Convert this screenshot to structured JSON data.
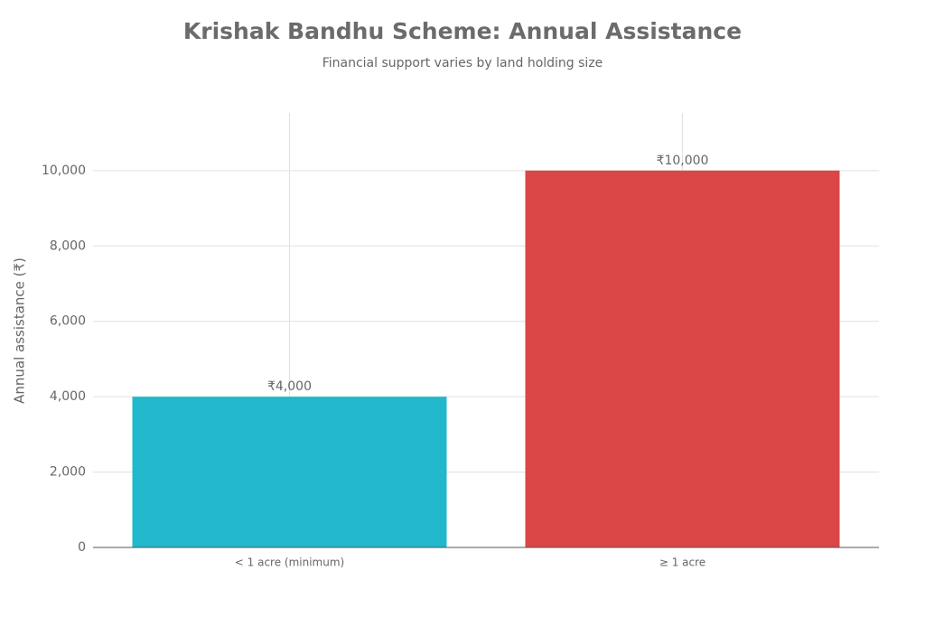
{
  "chart_data": {
    "type": "bar",
    "title": "Krishak Bandhu Scheme: Annual Assistance",
    "subtitle": "Financial support varies by land holding size",
    "y_label": "Annual assistance (₹)",
    "categories": [
      "< 1 acre (minimum)",
      "≥ 1 acre"
    ],
    "values": [
      4000,
      10000
    ],
    "value_labels": [
      "₹4,000",
      "₹10,000"
    ],
    "colors": [
      "#21b8cd",
      "#db4646"
    ],
    "ylim": [
      0,
      11530
    ],
    "yticks": [
      0,
      {
        "value": 2000,
        "label": "2,000"
      },
      {
        "value": 4000,
        "label": "4,000"
      },
      {
        "value": 6000,
        "label": "6,000"
      },
      {
        "value": 8000,
        "label": "8,000"
      },
      {
        "value": 10000,
        "label": "10,000"
      }
    ],
    "grid": true
  }
}
